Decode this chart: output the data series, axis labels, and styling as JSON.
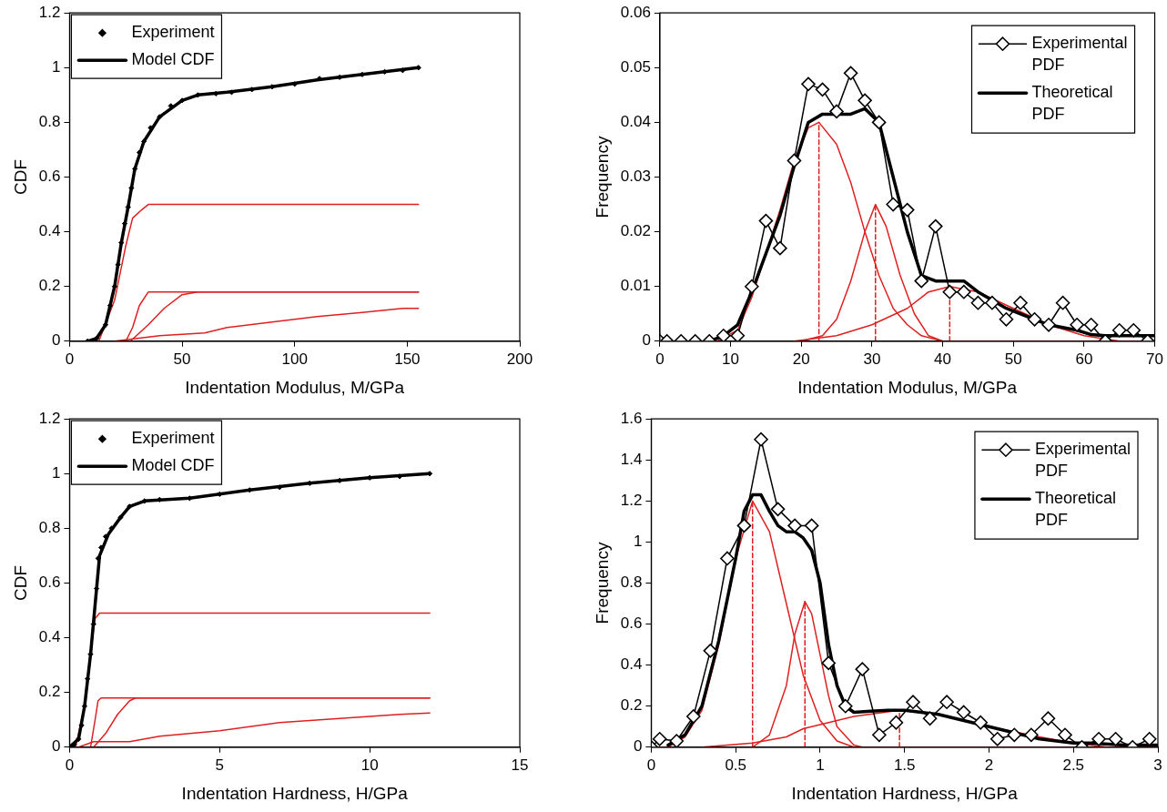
{
  "chart_data": [
    {
      "type": "line",
      "xlabel": "Indentation Modulus, M/GPa",
      "ylabel": "CDF",
      "xlim": [
        0,
        200
      ],
      "xticks": [
        0,
        50,
        100,
        150,
        200
      ],
      "ylim": [
        0,
        1.2
      ],
      "yticks": [
        0,
        0.2,
        0.4,
        0.6,
        0.8,
        1,
        1.2
      ],
      "legend": "top left",
      "series": [
        {
          "name": "Experiment",
          "type": "scatter",
          "marker": "diamond",
          "color": "#000000",
          "x": [
            8,
            12,
            16,
            18,
            20,
            21.5,
            23,
            24.5,
            26,
            27.5,
            29,
            31,
            33,
            36,
            40,
            45,
            50,
            57,
            65,
            72,
            81,
            90,
            100,
            111,
            120,
            130,
            140,
            148,
            155
          ],
          "values": [
            0,
            0.01,
            0.06,
            0.13,
            0.2,
            0.28,
            0.36,
            0.43,
            0.49,
            0.56,
            0.63,
            0.69,
            0.73,
            0.78,
            0.82,
            0.86,
            0.88,
            0.9,
            0.905,
            0.91,
            0.92,
            0.93,
            0.94,
            0.96,
            0.965,
            0.975,
            0.985,
            0.99,
            1.0
          ]
        },
        {
          "name": "Model CDF",
          "type": "line",
          "color": "#000000",
          "x": [
            8,
            12,
            16,
            20,
            23,
            26,
            29,
            33,
            40,
            50,
            57,
            70,
            90,
            110,
            130,
            155
          ],
          "values": [
            0,
            0.01,
            0.06,
            0.2,
            0.36,
            0.49,
            0.63,
            0.73,
            0.82,
            0.88,
            0.9,
            0.91,
            0.93,
            0.955,
            0.975,
            1.0
          ]
        },
        {
          "type": "line",
          "color": "#e02020",
          "x": [
            13,
            20,
            25,
            28,
            32,
            35,
            155
          ],
          "values": [
            0,
            0.15,
            0.35,
            0.45,
            0.48,
            0.5,
            0.5
          ]
        },
        {
          "type": "line",
          "color": "#e02020",
          "x": [
            25,
            28,
            31,
            35,
            155
          ],
          "values": [
            0,
            0.05,
            0.13,
            0.18,
            0.18
          ]
        },
        {
          "type": "line",
          "color": "#e02020",
          "x": [
            27,
            35,
            42,
            50,
            57,
            155
          ],
          "values": [
            0,
            0.06,
            0.12,
            0.17,
            0.18,
            0.18
          ]
        },
        {
          "type": "line",
          "color": "#e02020",
          "x": [
            20,
            40,
            60,
            70,
            90,
            110,
            130,
            148,
            155
          ],
          "values": [
            0,
            0.02,
            0.03,
            0.05,
            0.07,
            0.09,
            0.105,
            0.12,
            0.12
          ]
        }
      ]
    },
    {
      "type": "line",
      "xlabel": "Indentation Modulus, M/GPa",
      "ylabel": "Frequency",
      "xlim": [
        0,
        70
      ],
      "xticks": [
        0,
        10,
        20,
        30,
        40,
        50,
        60,
        70
      ],
      "ylim": [
        0,
        0.06
      ],
      "yticks": [
        0,
        0.01,
        0.02,
        0.03,
        0.04,
        0.05,
        0.06
      ],
      "legend": "top right",
      "series": [
        {
          "name": "Experimental PDF",
          "type": "line",
          "marker": "diamond",
          "color": "#000000",
          "x": [
            0,
            1,
            3,
            5,
            7,
            9,
            11,
            13,
            15,
            17,
            19,
            21,
            23,
            25,
            27,
            29,
            31,
            33,
            35,
            37,
            39,
            41,
            43,
            45,
            47,
            49,
            51,
            53,
            55,
            57,
            59,
            61,
            63,
            65,
            67,
            69
          ],
          "values": [
            0,
            0,
            0,
            0,
            0,
            0.001,
            0.001,
            0.01,
            0.022,
            0.017,
            0.033,
            0.047,
            0.046,
            0.042,
            0.049,
            0.044,
            0.04,
            0.025,
            0.024,
            0.011,
            0.021,
            0.009,
            0.009,
            0.007,
            0.007,
            0.004,
            0.007,
            0.004,
            0.003,
            0.007,
            0.003,
            0.003,
            0,
            0.002,
            0.002,
            0
          ]
        },
        {
          "name": "Theoretical PDF",
          "type": "line",
          "color": "#000000",
          "x": [
            7,
            9,
            11,
            13,
            15,
            17,
            19,
            21,
            23,
            25,
            27,
            29,
            31,
            33,
            35,
            37,
            39,
            41,
            43,
            45,
            47,
            49,
            51,
            53,
            55,
            57,
            59,
            61,
            63,
            70
          ],
          "values": [
            0,
            0.001,
            0.003,
            0.009,
            0.016,
            0.023,
            0.032,
            0.04,
            0.0415,
            0.0415,
            0.0415,
            0.0425,
            0.04,
            0.03,
            0.02,
            0.012,
            0.011,
            0.011,
            0.011,
            0.009,
            0.0075,
            0.006,
            0.005,
            0.004,
            0.003,
            0.0025,
            0.002,
            0.0012,
            0.001,
            0.001
          ]
        },
        {
          "type": "line",
          "color": "#e02020",
          "x": [
            0,
            8,
            11,
            13,
            15,
            17,
            19,
            21,
            22.5,
            25,
            27,
            29,
            31,
            33,
            35,
            37,
            40,
            70
          ],
          "values": [
            0,
            0,
            0.002,
            0.008,
            0.016,
            0.024,
            0.033,
            0.039,
            0.04,
            0.036,
            0.029,
            0.02,
            0.012,
            0.006,
            0.003,
            0.001,
            0,
            0
          ]
        },
        {
          "type": "line",
          "color": "#e02020",
          "x": [
            20,
            23,
            25,
            27,
            29,
            30.5,
            32,
            34,
            36,
            38,
            40
          ],
          "values": [
            0,
            0.001,
            0.004,
            0.011,
            0.02,
            0.025,
            0.021,
            0.012,
            0.005,
            0.001,
            0
          ]
        },
        {
          "type": "line",
          "color": "#e02020",
          "x": [
            19,
            22,
            25,
            30,
            35,
            38,
            41,
            45,
            50,
            55,
            60,
            65,
            70
          ],
          "values": [
            0,
            0.0005,
            0.001,
            0.003,
            0.006,
            0.009,
            0.01,
            0.009,
            0.006,
            0.003,
            0.001,
            0,
            0
          ]
        },
        {
          "type": "line",
          "line_style": "dashed",
          "color": "#e02020",
          "x": [
            22.5,
            22.5
          ],
          "values": [
            0,
            0.04
          ]
        },
        {
          "type": "line",
          "line_style": "dashed",
          "color": "#e02020",
          "x": [
            30.5,
            30.5
          ],
          "values": [
            0,
            0.025
          ]
        },
        {
          "type": "line",
          "line_style": "dashed",
          "color": "#e02020",
          "x": [
            41,
            41
          ],
          "values": [
            0,
            0.01
          ]
        }
      ]
    },
    {
      "type": "line",
      "xlabel": "Indentation Hardness, H/GPa",
      "ylabel": "CDF",
      "xlim": [
        0,
        15
      ],
      "xticks": [
        0,
        5,
        10,
        15
      ],
      "ylim": [
        0,
        1.2
      ],
      "yticks": [
        0,
        0.2,
        0.4,
        0.6,
        0.8,
        1,
        1.2
      ],
      "legend": "top left",
      "series": [
        {
          "name": "Experiment",
          "type": "scatter",
          "marker": "diamond",
          "color": "#000000",
          "x": [
            0.15,
            0.3,
            0.4,
            0.5,
            0.6,
            0.7,
            0.8,
            0.9,
            0.95,
            1.05,
            1.2,
            1.4,
            1.7,
            2.0,
            2.5,
            3,
            4,
            5,
            6,
            7,
            8,
            9,
            10,
            11,
            12
          ],
          "values": [
            0.01,
            0.03,
            0.08,
            0.15,
            0.25,
            0.34,
            0.45,
            0.58,
            0.69,
            0.73,
            0.77,
            0.8,
            0.84,
            0.88,
            0.9,
            0.905,
            0.91,
            0.925,
            0.94,
            0.95,
            0.965,
            0.975,
            0.985,
            0.99,
            1.0
          ]
        },
        {
          "name": "Model CDF",
          "type": "line",
          "color": "#000000",
          "x": [
            0,
            0.3,
            0.5,
            0.7,
            0.9,
            1.0,
            1.3,
            1.7,
            2.0,
            2.5,
            4,
            6,
            8,
            10,
            12
          ],
          "values": [
            0,
            0.03,
            0.15,
            0.34,
            0.58,
            0.7,
            0.78,
            0.84,
            0.88,
            0.9,
            0.91,
            0.94,
            0.965,
            0.985,
            1.0
          ]
        },
        {
          "type": "line",
          "color": "#e02020",
          "x": [
            0.2,
            0.5,
            0.7,
            0.85,
            1.0,
            12
          ],
          "values": [
            0,
            0.15,
            0.35,
            0.47,
            0.49,
            0.49
          ]
        },
        {
          "type": "line",
          "color": "#e02020",
          "x": [
            0.7,
            0.85,
            0.95,
            1.05,
            12
          ],
          "values": [
            0,
            0.1,
            0.17,
            0.18,
            0.18
          ]
        },
        {
          "type": "line",
          "color": "#e02020",
          "x": [
            0.8,
            1.2,
            1.6,
            2.0,
            2.2,
            12
          ],
          "values": [
            0,
            0.05,
            0.12,
            0.17,
            0.18,
            0.18
          ]
        },
        {
          "type": "line",
          "color": "#e02020",
          "x": [
            0.3,
            0.8,
            2,
            3,
            5,
            7,
            9,
            11,
            12
          ],
          "values": [
            0,
            0.02,
            0.02,
            0.04,
            0.06,
            0.09,
            0.105,
            0.12,
            0.125
          ]
        }
      ]
    },
    {
      "type": "line",
      "xlabel": "Indentation Hardness, H/GPa",
      "ylabel": "Frequency",
      "xlim": [
        0,
        3
      ],
      "xticks": [
        0,
        0.5,
        1,
        1.5,
        2,
        2.5,
        3
      ],
      "ylim": [
        0,
        1.6
      ],
      "yticks": [
        0,
        0.2,
        0.4,
        0.6,
        0.8,
        1,
        1.2,
        1.4,
        1.6
      ],
      "legend": "top right",
      "series": [
        {
          "name": "Experimental PDF",
          "type": "line",
          "marker": "diamond",
          "color": "#000000",
          "x": [
            0,
            0.05,
            0.15,
            0.25,
            0.35,
            0.45,
            0.55,
            0.65,
            0.75,
            0.85,
            0.95,
            1.05,
            1.15,
            1.25,
            1.35,
            1.45,
            1.55,
            1.65,
            1.75,
            1.85,
            1.95,
            2.05,
            2.15,
            2.25,
            2.35,
            2.45,
            2.55,
            2.65,
            2.75,
            2.85,
            2.95
          ],
          "values": [
            0,
            0.04,
            0.03,
            0.15,
            0.47,
            0.92,
            1.08,
            1.5,
            1.16,
            1.08,
            1.08,
            0.41,
            0.2,
            0.38,
            0.06,
            0.12,
            0.22,
            0.14,
            0.22,
            0.17,
            0.12,
            0.04,
            0.06,
            0.06,
            0.14,
            0.06,
            0,
            0.04,
            0.04,
            0,
            0.04
          ]
        },
        {
          "name": "Theoretical PDF",
          "type": "line",
          "color": "#000000",
          "x": [
            0.1,
            0.2,
            0.3,
            0.4,
            0.5,
            0.55,
            0.6,
            0.65,
            0.7,
            0.75,
            0.8,
            0.85,
            0.9,
            0.95,
            1.0,
            1.05,
            1.1,
            1.15,
            1.2,
            1.3,
            1.4,
            1.5,
            1.6,
            1.7,
            1.8,
            1.9,
            2.0,
            2.1,
            2.2,
            2.3,
            2.4,
            2.5,
            2.6,
            2.8,
            3.0
          ],
          "values": [
            0.01,
            0.06,
            0.2,
            0.52,
            0.92,
            1.15,
            1.23,
            1.23,
            1.15,
            1.08,
            1.05,
            1.05,
            1.02,
            0.96,
            0.8,
            0.5,
            0.3,
            0.2,
            0.17,
            0.175,
            0.18,
            0.18,
            0.17,
            0.16,
            0.14,
            0.12,
            0.1,
            0.08,
            0.06,
            0.04,
            0.03,
            0.02,
            0.02,
            0.01,
            0.01
          ]
        },
        {
          "type": "line",
          "color": "#e02020",
          "x": [
            0,
            0.1,
            0.2,
            0.3,
            0.4,
            0.5,
            0.6,
            0.7,
            0.8,
            0.9,
            1.0,
            1.1,
            1.2,
            3.0
          ],
          "values": [
            0,
            0,
            0.05,
            0.18,
            0.5,
            0.92,
            1.2,
            1.05,
            0.7,
            0.35,
            0.13,
            0.03,
            0,
            0
          ]
        },
        {
          "type": "line",
          "color": "#e02020",
          "x": [
            0.6,
            0.7,
            0.8,
            0.85,
            0.91,
            0.95,
            1.0,
            1.05,
            1.1,
            1.2,
            1.25
          ],
          "values": [
            0,
            0.06,
            0.3,
            0.55,
            0.71,
            0.65,
            0.45,
            0.25,
            0.1,
            0.01,
            0
          ]
        },
        {
          "type": "line",
          "color": "#e02020",
          "x": [
            0.3,
            0.6,
            0.8,
            0.9,
            1.0,
            1.2,
            1.47,
            1.7,
            2.0,
            2.3,
            2.5,
            2.7,
            3.0
          ],
          "values": [
            0,
            0.02,
            0.05,
            0.09,
            0.11,
            0.15,
            0.18,
            0.16,
            0.1,
            0.05,
            0.02,
            0,
            0
          ]
        },
        {
          "type": "line",
          "line_style": "dashed",
          "color": "#e02020",
          "x": [
            0.6,
            0.6
          ],
          "values": [
            0,
            1.2
          ]
        },
        {
          "type": "line",
          "line_style": "dashed",
          "color": "#e02020",
          "x": [
            0.91,
            0.91
          ],
          "values": [
            0,
            0.71
          ]
        },
        {
          "type": "line",
          "line_style": "dashed",
          "color": "#e02020",
          "x": [
            1.47,
            1.47
          ],
          "values": [
            0,
            0.18
          ]
        }
      ]
    }
  ]
}
